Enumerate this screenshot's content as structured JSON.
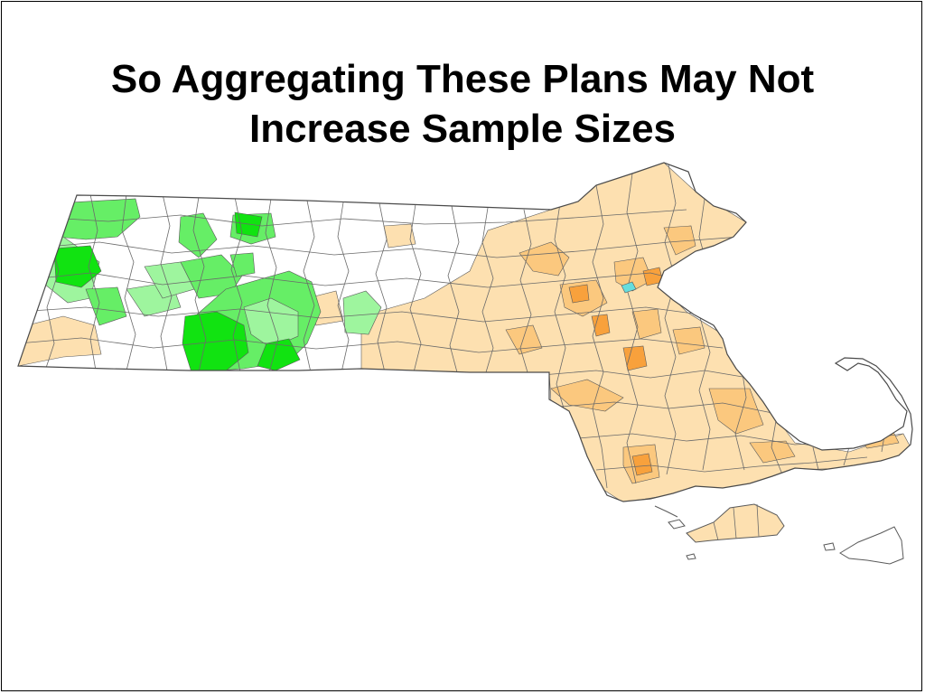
{
  "slide": {
    "title_line1": "So Aggregating These Plans May Not",
    "title_line2": "Increase Sample Sizes"
  },
  "map": {
    "region": "Massachusetts",
    "unit": "municipalities",
    "colors": {
      "outline": "#5a5a5a",
      "unshaded": "#ffffff",
      "green_light": "#9ef59e",
      "green_medium": "#66ee66",
      "green_dark": "#11e311",
      "orange_light": "#fde0b0",
      "orange_medium": "#fbc87e",
      "orange_dark": "#f8a13c",
      "cyan_marker": "#66dddd"
    }
  }
}
